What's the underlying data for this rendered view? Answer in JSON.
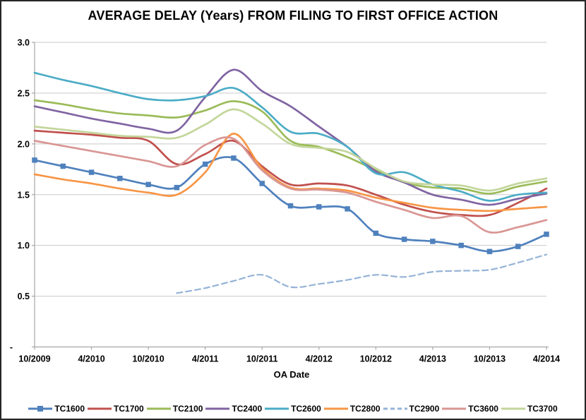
{
  "chart_data": {
    "type": "line",
    "title": "AVERAGE DELAY (Years) FROM FILING TO FIRST OFFICE ACTION",
    "xlabel": "OA Date",
    "ylabel": "",
    "ylim": [
      0,
      3.0
    ],
    "grid": "horizontal",
    "legend_position": "bottom",
    "axis_color": "#A6A6A6",
    "grid_color": "#C9C9C9",
    "categories": [
      "10/2009",
      "1/2010",
      "4/2010",
      "7/2010",
      "10/2010",
      "1/2011",
      "4/2011",
      "7/2011",
      "10/2011",
      "1/2012",
      "4/2012",
      "7/2012",
      "10/2012",
      "1/2013",
      "4/2013",
      "7/2013",
      "10/2013",
      "1/2014",
      "4/2014"
    ],
    "x_tick_indices": [
      0,
      2,
      4,
      6,
      8,
      10,
      12,
      14,
      16,
      18
    ],
    "yticks": [
      {
        "value": 0.0,
        "label": "-"
      },
      {
        "value": 0.5,
        "label": "0.5"
      },
      {
        "value": 1.0,
        "label": "1.0"
      },
      {
        "value": 1.5,
        "label": "1.5"
      },
      {
        "value": 2.0,
        "label": "2.0"
      },
      {
        "value": 2.5,
        "label": "2.5"
      },
      {
        "value": 3.0,
        "label": "3.0"
      }
    ],
    "series": [
      {
        "name": "TC1600",
        "color": "#4F81BD",
        "marker": "square",
        "dash": false,
        "values": [
          1.84,
          1.78,
          1.72,
          1.66,
          1.6,
          1.57,
          1.8,
          1.86,
          1.61,
          1.39,
          1.38,
          1.36,
          1.12,
          1.06,
          1.04,
          1.0,
          0.94,
          0.99,
          1.11
        ]
      },
      {
        "name": "TC1700",
        "color": "#C0504D",
        "marker": "none",
        "dash": false,
        "values": [
          2.13,
          2.11,
          2.09,
          2.06,
          2.03,
          1.8,
          1.9,
          2.03,
          1.78,
          1.6,
          1.61,
          1.59,
          1.5,
          1.4,
          1.33,
          1.3,
          1.3,
          1.42,
          1.56
        ]
      },
      {
        "name": "TC2100",
        "color": "#9BBB59",
        "marker": "none",
        "dash": false,
        "values": [
          2.43,
          2.39,
          2.34,
          2.3,
          2.28,
          2.26,
          2.33,
          2.42,
          2.32,
          2.03,
          1.97,
          1.87,
          1.74,
          1.62,
          1.57,
          1.56,
          1.51,
          1.58,
          1.63
        ]
      },
      {
        "name": "TC2400",
        "color": "#8064A2",
        "marker": "none",
        "dash": false,
        "values": [
          2.37,
          2.31,
          2.25,
          2.2,
          2.15,
          2.13,
          2.46,
          2.73,
          2.52,
          2.37,
          2.17,
          1.97,
          1.73,
          1.62,
          1.5,
          1.45,
          1.4,
          1.46,
          1.51
        ]
      },
      {
        "name": "TC2600",
        "color": "#4BACC6",
        "marker": "none",
        "dash": false,
        "values": [
          2.7,
          2.63,
          2.57,
          2.5,
          2.44,
          2.43,
          2.47,
          2.55,
          2.36,
          2.12,
          2.1,
          1.97,
          1.71,
          1.72,
          1.6,
          1.53,
          1.44,
          1.5,
          1.52
        ]
      },
      {
        "name": "TC2800",
        "color": "#F79646",
        "marker": "none",
        "dash": false,
        "values": [
          1.7,
          1.65,
          1.61,
          1.56,
          1.52,
          1.5,
          1.72,
          2.1,
          1.76,
          1.57,
          1.56,
          1.54,
          1.47,
          1.42,
          1.37,
          1.35,
          1.34,
          1.36,
          1.38
        ]
      },
      {
        "name": "TC2900",
        "color": "#95B3D7",
        "marker": "none",
        "dash": true,
        "values": [
          null,
          null,
          null,
          null,
          null,
          0.53,
          0.58,
          0.65,
          0.71,
          0.59,
          0.62,
          0.66,
          0.71,
          0.69,
          0.74,
          0.75,
          0.76,
          0.83,
          0.91
        ]
      },
      {
        "name": "TC3600",
        "color": "#D99694",
        "marker": "none",
        "dash": false,
        "values": [
          2.03,
          1.98,
          1.93,
          1.88,
          1.83,
          1.78,
          1.99,
          2.05,
          1.74,
          1.56,
          1.55,
          1.52,
          1.43,
          1.35,
          1.27,
          1.29,
          1.13,
          1.18,
          1.25
        ]
      },
      {
        "name": "TC3700",
        "color": "#C3D69B",
        "marker": "none",
        "dash": false,
        "values": [
          2.17,
          2.14,
          2.11,
          2.08,
          2.07,
          2.06,
          2.19,
          2.34,
          2.2,
          2.0,
          1.96,
          1.92,
          1.76,
          1.63,
          1.6,
          1.59,
          1.54,
          1.61,
          1.66
        ]
      }
    ]
  }
}
